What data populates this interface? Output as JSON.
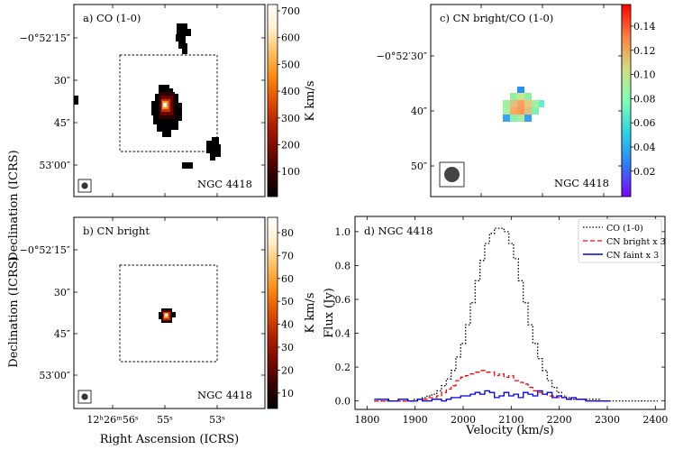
{
  "figure": {
    "ylabel_left": "Declination (ICRS)",
    "xlabel_left": "Right Ascension (ICRS)",
    "dec_ticks": [
      "−0°52′15″",
      "30″",
      "45″",
      "53′00″"
    ],
    "ra_ticks": [
      "12ʰ26ᵐ56ˢ",
      "55ˢ",
      "53ˢ"
    ],
    "galaxy": "NGC 4418"
  },
  "panels": {
    "a": {
      "title": "a) CO (1-0)",
      "cbar_label": "K km/s",
      "cbar_ticks": [
        "700",
        "600",
        "500",
        "400",
        "300",
        "200",
        "100"
      ],
      "cbar_colors": [
        "#000000",
        "#3a0000",
        "#7a0a00",
        "#b02000",
        "#e05000",
        "#ff8a10",
        "#ffc060",
        "#fff0d0",
        "#ffffff"
      ]
    },
    "b": {
      "title": "b) CN bright",
      "cbar_label": "K km/s",
      "cbar_ticks": [
        "80",
        "70",
        "60",
        "50",
        "40",
        "30",
        "20",
        "10"
      ],
      "cbar_colors": [
        "#000000",
        "#3a0000",
        "#7a0a00",
        "#b02000",
        "#e05000",
        "#ff8a10",
        "#ffc060",
        "#fff0d0",
        "#ffffff"
      ]
    },
    "c": {
      "title": "c) CN bright/CO (1-0)",
      "dec_ticks": [
        "−0°52′30″",
        "40″",
        "50″"
      ],
      "cbar_ticks": [
        "0.14",
        "0.12",
        "0.10",
        "0.08",
        "0.06",
        "0.04",
        "0.02"
      ],
      "cbar_colors": [
        "#7f00ff",
        "#2b7ff6",
        "#2bd4e6",
        "#80ffb4",
        "#d4dd7f",
        "#ff7f3f",
        "#ff0000"
      ]
    }
  },
  "chart_data": {
    "type": "line",
    "title": "d) NGC 4418",
    "xlabel": "Velocity (km/s)",
    "ylabel": "Flux (Jy)",
    "xlim": [
      1775,
      2420
    ],
    "ylim": [
      -0.05,
      1.09
    ],
    "xticks": [
      1800,
      1900,
      2000,
      2100,
      2200,
      2300,
      2400
    ],
    "yticks": [
      0.0,
      0.2,
      0.4,
      0.6,
      0.8,
      1.0
    ],
    "step": 10,
    "legend_position": "top-right",
    "series": [
      {
        "name": "CO (1-0)",
        "color": "#000000",
        "dash": "1.5,2",
        "x": [
          1820,
          1830,
          1840,
          1850,
          1860,
          1870,
          1880,
          1890,
          1900,
          1910,
          1920,
          1930,
          1940,
          1950,
          1960,
          1970,
          1980,
          1990,
          2000,
          2010,
          2020,
          2030,
          2040,
          2050,
          2060,
          2070,
          2080,
          2090,
          2100,
          2110,
          2120,
          2130,
          2140,
          2150,
          2160,
          2170,
          2180,
          2190,
          2200,
          2210,
          2220,
          2230,
          2240,
          2250,
          2260,
          2270,
          2280,
          2290,
          2300,
          2310,
          2320,
          2330,
          2340,
          2350,
          2360,
          2370,
          2380,
          2390,
          2400
        ],
        "values": [
          0.0,
          0.0,
          0.0,
          0.0,
          0.0,
          0.0,
          0.0,
          0.0,
          0.01,
          0.01,
          0.02,
          0.03,
          0.04,
          0.06,
          0.09,
          0.13,
          0.18,
          0.26,
          0.34,
          0.45,
          0.58,
          0.71,
          0.83,
          0.93,
          0.99,
          1.02,
          1.02,
          1.0,
          0.93,
          0.84,
          0.71,
          0.58,
          0.45,
          0.34,
          0.25,
          0.18,
          0.12,
          0.08,
          0.05,
          0.03,
          0.02,
          0.01,
          0.01,
          0.01,
          0.01,
          0.01,
          0.01,
          0.0,
          0.0,
          0.0,
          0.0,
          0.0,
          0.0,
          0.0,
          0.0,
          0.0,
          0.0,
          0.0,
          0.0
        ]
      },
      {
        "name": "CN bright x 3",
        "color": "#ff0000",
        "dash": "5,3",
        "x": [
          1820,
          1830,
          1840,
          1850,
          1860,
          1870,
          1880,
          1890,
          1900,
          1910,
          1920,
          1930,
          1940,
          1950,
          1960,
          1970,
          1980,
          1990,
          2000,
          2010,
          2020,
          2030,
          2040,
          2050,
          2060,
          2070,
          2080,
          2090,
          2100,
          2110,
          2120,
          2130,
          2140,
          2150,
          2160,
          2170,
          2180,
          2190,
          2200,
          2210,
          2220,
          2230,
          2240,
          2250,
          2260,
          2270,
          2280,
          2290,
          2300
        ],
        "values": [
          0.0,
          0.0,
          0.0,
          0.0,
          0.0,
          0.0,
          0.0,
          0.0,
          0.0,
          0.01,
          0.01,
          0.02,
          0.02,
          0.03,
          0.05,
          0.07,
          0.09,
          0.12,
          0.14,
          0.15,
          0.16,
          0.17,
          0.18,
          0.17,
          0.17,
          0.15,
          0.16,
          0.14,
          0.15,
          0.12,
          0.11,
          0.1,
          0.08,
          0.06,
          0.05,
          0.04,
          0.03,
          0.03,
          0.02,
          0.02,
          0.01,
          0.01,
          0.01,
          0.01,
          0.0,
          0.0,
          0.0,
          0.0,
          0.0
        ]
      },
      {
        "name": "CN faint x 3",
        "color": "#0000dd",
        "dash": "",
        "x": [
          1820,
          1830,
          1840,
          1850,
          1860,
          1870,
          1880,
          1890,
          1900,
          1910,
          1920,
          1930,
          1940,
          1950,
          1960,
          1970,
          1980,
          1990,
          2000,
          2010,
          2020,
          2030,
          2040,
          2050,
          2060,
          2070,
          2080,
          2090,
          2100,
          2110,
          2120,
          2130,
          2140,
          2150,
          2160,
          2170,
          2180,
          2190,
          2200,
          2210,
          2220,
          2230,
          2240,
          2250,
          2260,
          2270,
          2280,
          2290,
          2300
        ],
        "values": [
          0.01,
          0.01,
          0.01,
          0.0,
          0.0,
          0.01,
          0.01,
          0.0,
          0.0,
          0.01,
          0.0,
          0.0,
          0.01,
          0.01,
          0.0,
          0.01,
          0.02,
          0.02,
          0.03,
          0.03,
          0.04,
          0.05,
          0.04,
          0.06,
          0.05,
          0.02,
          0.03,
          0.05,
          0.03,
          0.04,
          0.02,
          0.05,
          0.04,
          0.03,
          0.06,
          0.04,
          0.05,
          0.02,
          0.03,
          0.02,
          0.01,
          0.02,
          0.01,
          0.01,
          0.0,
          0.0,
          0.0,
          0.0,
          0.0
        ]
      }
    ]
  }
}
